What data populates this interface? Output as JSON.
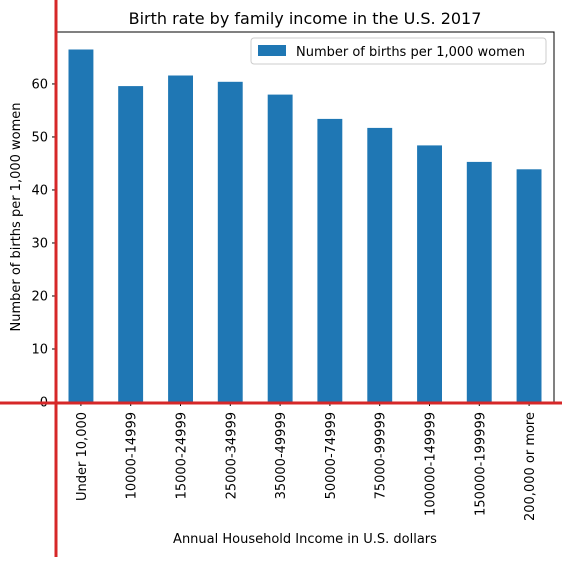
{
  "chart_data": {
    "type": "bar",
    "title": "Birth rate by family income in the U.S. 2017",
    "xlabel": "Annual Household Income in U.S. dollars",
    "ylabel": "Number of births per 1,000 women",
    "categories": [
      "Under 10,000",
      "10000-14999",
      "15000-24999",
      "25000-34999",
      "35000-49999",
      "50000-74999",
      "75000-99999",
      "100000-149999",
      "150000-199999",
      "200,000 or more"
    ],
    "series": [
      {
        "name": "Number of births per 1,000 women",
        "values": [
          66.5,
          59.6,
          61.6,
          60.4,
          58.0,
          53.4,
          51.7,
          48.4,
          45.3,
          43.9
        ]
      }
    ],
    "ylim": [
      0,
      69.8
    ],
    "yticks": [
      0,
      10,
      20,
      30,
      40,
      50,
      60
    ],
    "legend": "top-right",
    "grid": false,
    "colors": {
      "bar": "#1f77b4",
      "highlight_lines": "#d62728"
    }
  }
}
